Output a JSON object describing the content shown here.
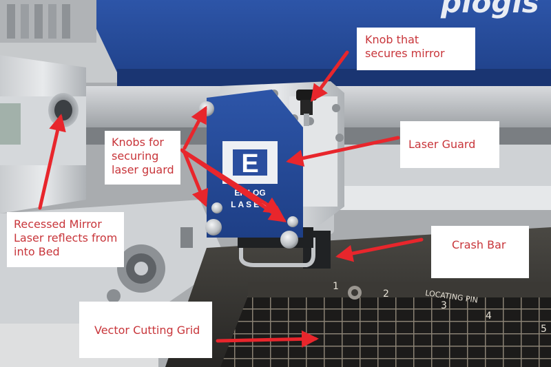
{
  "photo": {
    "brand_banner_text": "plogis",
    "logo_letter": "E",
    "logo_wordmark_top": "EPILOG",
    "logo_wordmark_bottom": "LASER",
    "grid_numbers": [
      "1",
      "2",
      "3",
      "4",
      "5"
    ],
    "grid_text": "LOCATING PIN",
    "accent_color": "#e8262c",
    "label_text_color": "#c8353a"
  },
  "labels": {
    "knob_mirror": {
      "line1": "Knob that",
      "line2": "secures mirror"
    },
    "laser_guard": {
      "line1": "Laser Guard"
    },
    "knobs_guard": {
      "line1": "Knobs for",
      "line2": "securing",
      "line3": "laser guard"
    },
    "recessed_mirror": {
      "line1": "Recessed Mirror",
      "line2": "Laser reflects from",
      "line3": "into Bed"
    },
    "crash_bar": {
      "line1": "Crash Bar"
    },
    "vector_grid": {
      "line1": "Vector Cutting Grid"
    }
  }
}
